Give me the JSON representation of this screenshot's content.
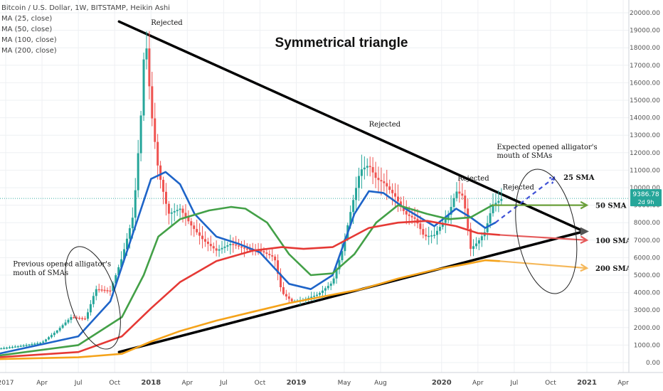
{
  "legend": {
    "symbol": "Bitcoin / U.S. Dollar, 1W, BITSTAMP, Heikin Ashi",
    "ma": [
      "MA (25, close)",
      "MA (50, close)",
      "MA (100, close)",
      "MA (200, close)"
    ]
  },
  "chart_data": {
    "type": "candlestick",
    "title": "Symmetrical triangle",
    "price_axis": {
      "ticks": [
        0,
        1000,
        2000,
        3000,
        4000,
        5000,
        6000,
        7000,
        8000,
        9000,
        10000,
        11000,
        12000,
        13000,
        14000,
        15000,
        16000,
        17000,
        18000,
        19000,
        20000
      ],
      "tick_labels": [
        "0.00",
        "1000.00",
        "2000.00",
        "3000.00",
        "4000.00",
        "5000.00",
        "6000.00",
        "7000.00",
        "8000.00",
        "9000.00",
        "10000.00",
        "11000.00",
        "12000.00",
        "13000.00",
        "14000.00",
        "15000.00",
        "16000.00",
        "17000.00",
        "18000.00",
        "19000.00",
        "20000.00"
      ],
      "ylim": [
        -500,
        20300
      ]
    },
    "time_axis": {
      "ticks": [
        2017.0,
        2017.25,
        2017.5,
        2017.75,
        2018.0,
        2018.25,
        2018.5,
        2018.75,
        2019.0,
        2019.33,
        2019.58,
        2020.0,
        2020.25,
        2020.5,
        2020.75,
        2021.0,
        2021.25
      ],
      "tick_labels": [
        "2017",
        "Apr",
        "Jul",
        "Oct",
        "2018",
        "Apr",
        "Jul",
        "Oct",
        "2019",
        "May",
        "Aug",
        "2020",
        "Apr",
        "Jul",
        "Oct",
        "2021",
        "Apr"
      ],
      "bold_labels": [
        "2018",
        "2019",
        "2020",
        "2021"
      ]
    },
    "current_price": {
      "value": 9386.78,
      "label": "9386.78",
      "countdown": "2d 9h",
      "color": "#26a69a"
    },
    "price_path": [
      [
        2016.95,
        800
      ],
      [
        2017.1,
        950
      ],
      [
        2017.25,
        1150
      ],
      [
        2017.35,
        1800
      ],
      [
        2017.45,
        2600
      ],
      [
        2017.55,
        2500
      ],
      [
        2017.62,
        4200
      ],
      [
        2017.72,
        4100
      ],
      [
        2017.8,
        6000
      ],
      [
        2017.88,
        8500
      ],
      [
        2017.93,
        14000
      ],
      [
        2017.96,
        19000
      ],
      [
        2018.0,
        14500
      ],
      [
        2018.05,
        11000
      ],
      [
        2018.12,
        8500
      ],
      [
        2018.2,
        8800
      ],
      [
        2018.28,
        7800
      ],
      [
        2018.36,
        7000
      ],
      [
        2018.45,
        6400
      ],
      [
        2018.55,
        6800
      ],
      [
        2018.65,
        6500
      ],
      [
        2018.75,
        6400
      ],
      [
        2018.85,
        6000
      ],
      [
        2018.9,
        4000
      ],
      [
        2018.97,
        3500
      ],
      [
        2019.05,
        3600
      ],
      [
        2019.15,
        3900
      ],
      [
        2019.25,
        4600
      ],
      [
        2019.32,
        6500
      ],
      [
        2019.37,
        8500
      ],
      [
        2019.44,
        11000
      ],
      [
        2019.5,
        11300
      ],
      [
        2019.55,
        10500
      ],
      [
        2019.6,
        10300
      ],
      [
        2019.68,
        9500
      ],
      [
        2019.75,
        8500
      ],
      [
        2019.82,
        8200
      ],
      [
        2019.88,
        7200
      ],
      [
        2019.95,
        7300
      ],
      [
        2020.05,
        8500
      ],
      [
        2020.1,
        9800
      ],
      [
        2020.15,
        9500
      ],
      [
        2020.2,
        6500
      ],
      [
        2020.25,
        6900
      ],
      [
        2020.3,
        7500
      ],
      [
        2020.35,
        9000
      ],
      [
        2020.42,
        9400
      ]
    ],
    "series": [
      {
        "name": "25 SMA",
        "color": "#1e64c8",
        "points": [
          [
            2016.95,
            500
          ],
          [
            2017.5,
            1500
          ],
          [
            2017.72,
            3500
          ],
          [
            2017.86,
            7000
          ],
          [
            2018.0,
            10500
          ],
          [
            2018.1,
            10900
          ],
          [
            2018.2,
            10200
          ],
          [
            2018.3,
            8500
          ],
          [
            2018.45,
            7200
          ],
          [
            2018.6,
            6800
          ],
          [
            2018.75,
            6300
          ],
          [
            2018.95,
            4500
          ],
          [
            2019.1,
            4200
          ],
          [
            2019.25,
            5000
          ],
          [
            2019.4,
            8500
          ],
          [
            2019.5,
            9800
          ],
          [
            2019.6,
            9700
          ],
          [
            2019.75,
            8800
          ],
          [
            2019.95,
            7800
          ],
          [
            2020.1,
            8800
          ],
          [
            2020.2,
            8300
          ],
          [
            2020.3,
            7700
          ],
          [
            2020.37,
            8000
          ]
        ]
      },
      {
        "name": "50 SMA",
        "color": "#43a047",
        "points": [
          [
            2016.95,
            400
          ],
          [
            2017.5,
            1000
          ],
          [
            2017.8,
            2600
          ],
          [
            2017.95,
            5000
          ],
          [
            2018.05,
            7200
          ],
          [
            2018.2,
            8200
          ],
          [
            2018.4,
            8700
          ],
          [
            2018.55,
            8900
          ],
          [
            2018.65,
            8800
          ],
          [
            2018.8,
            8000
          ],
          [
            2018.95,
            6200
          ],
          [
            2019.1,
            5000
          ],
          [
            2019.25,
            5100
          ],
          [
            2019.4,
            6200
          ],
          [
            2019.55,
            8000
          ],
          [
            2019.7,
            9000
          ],
          [
            2019.9,
            8500
          ],
          [
            2020.05,
            8200
          ],
          [
            2020.2,
            8300
          ],
          [
            2020.35,
            9000
          ]
        ]
      },
      {
        "name": "100 SMA",
        "color": "#e53935",
        "points": [
          [
            2016.95,
            300
          ],
          [
            2017.5,
            600
          ],
          [
            2017.8,
            1500
          ],
          [
            2018.0,
            3100
          ],
          [
            2018.2,
            4600
          ],
          [
            2018.45,
            5800
          ],
          [
            2018.7,
            6400
          ],
          [
            2018.9,
            6600
          ],
          [
            2019.05,
            6500
          ],
          [
            2019.25,
            6600
          ],
          [
            2019.5,
            7700
          ],
          [
            2019.7,
            8000
          ],
          [
            2019.9,
            8100
          ],
          [
            2020.1,
            7800
          ],
          [
            2020.25,
            7400
          ],
          [
            2020.4,
            7300
          ]
        ]
      },
      {
        "name": "200 SMA",
        "color": "#f5a31a",
        "points": [
          [
            2016.95,
            200
          ],
          [
            2017.5,
            300
          ],
          [
            2017.8,
            500
          ],
          [
            2018.0,
            1200
          ],
          [
            2018.2,
            1800
          ],
          [
            2018.45,
            2400
          ],
          [
            2018.7,
            2900
          ],
          [
            2018.95,
            3400
          ],
          [
            2019.2,
            3800
          ],
          [
            2019.45,
            4200
          ],
          [
            2019.7,
            4800
          ],
          [
            2019.95,
            5300
          ],
          [
            2020.15,
            5600
          ],
          [
            2020.3,
            5850
          ],
          [
            2020.4,
            5800
          ]
        ]
      }
    ],
    "projections": [
      {
        "label": "25 SMA",
        "color": "#3f51d6",
        "dashed": true,
        "from": [
          2020.37,
          8000
        ],
        "to": [
          2020.78,
          10600
        ]
      },
      {
        "label": "50 SMA",
        "color": "#6a9f3a",
        "dashed": false,
        "from": [
          2020.35,
          9000
        ],
        "to": [
          2021.0,
          9000
        ]
      },
      {
        "label": "100 SMA",
        "color": "#e55a5a",
        "dashed": false,
        "from": [
          2020.4,
          7300
        ],
        "to": [
          2021.0,
          7000
        ]
      },
      {
        "label": "200 SMA",
        "color": "#f5b85a",
        "dashed": false,
        "from": [
          2020.4,
          5800
        ],
        "to": [
          2021.0,
          5400
        ]
      }
    ],
    "trendlines": [
      {
        "name": "upper",
        "from": [
          2017.78,
          19500
        ],
        "to": [
          2020.98,
          7500
        ]
      },
      {
        "name": "lower",
        "from": [
          2017.78,
          600
        ],
        "to": [
          2020.98,
          7500
        ]
      }
    ],
    "annotations": [
      {
        "text": "Rejected",
        "at": [
          2018.0,
          19300
        ]
      },
      {
        "text": "Rejected",
        "at": [
          2019.5,
          13500
        ]
      },
      {
        "text": "Rejected",
        "at": [
          2020.11,
          10400
        ]
      },
      {
        "text": "Rejected",
        "at": [
          2020.42,
          9900
        ]
      },
      {
        "text": "Expected opened alligator's",
        "at": [
          2020.38,
          12200
        ]
      },
      {
        "text": "mouth of SMAs",
        "at": [
          2020.38,
          11700
        ]
      },
      {
        "text": "Previous opened alligator's",
        "at": [
          2017.05,
          5500
        ]
      },
      {
        "text": "mouth of SMAs",
        "at": [
          2017.05,
          5000
        ]
      }
    ],
    "ellipses": [
      {
        "center": [
          2017.6,
          3700
        ],
        "rx_years": 0.16,
        "ry_price": 3050,
        "rotate": -18
      },
      {
        "center": [
          2020.72,
          7500
        ],
        "rx_years": 0.2,
        "ry_price": 3600,
        "rotate": -10
      }
    ]
  }
}
